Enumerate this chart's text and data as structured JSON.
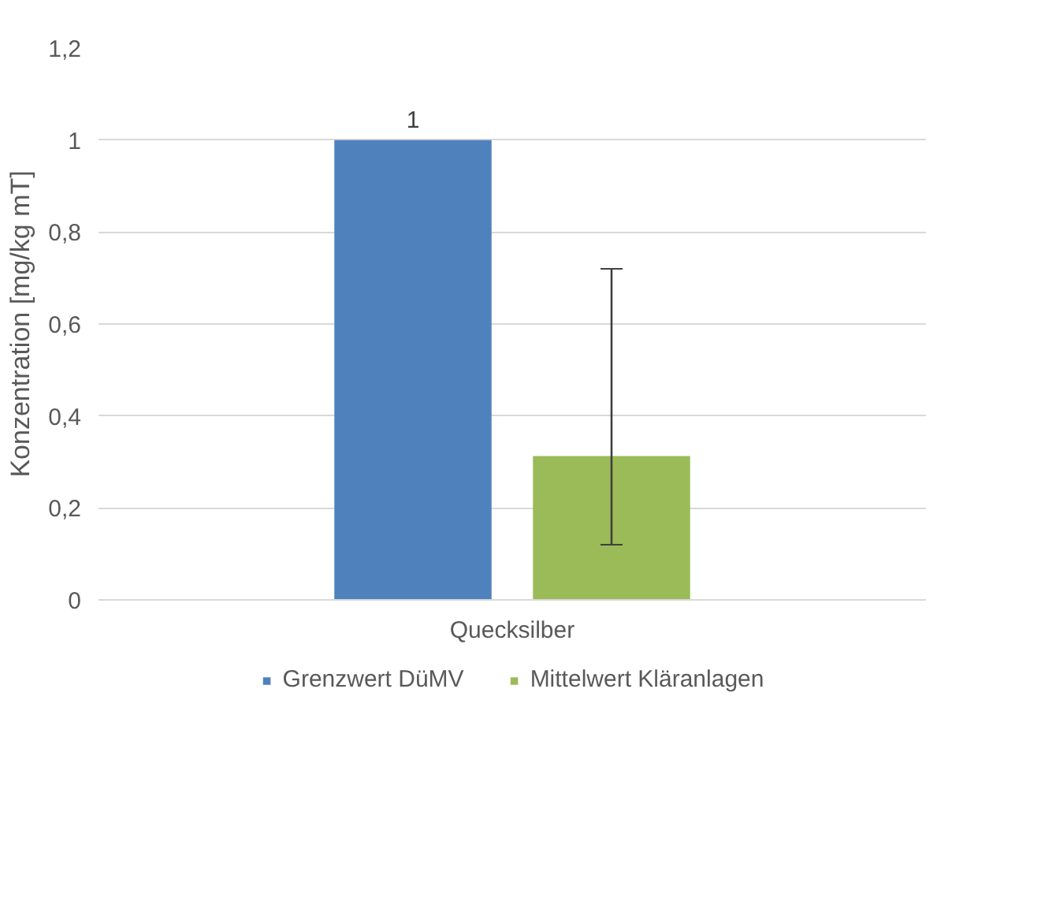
{
  "chart_data": {
    "type": "bar",
    "ylabel": "Konzentration [mg/kg mT]",
    "categories": [
      "Quecksilber"
    ],
    "series": [
      {
        "name": "Grenzwert DüMV",
        "color": "#4f81bd",
        "values": [
          1
        ],
        "value_labels": [
          "1"
        ]
      },
      {
        "name": "Mittelwert Kläranlagen",
        "color": "#9bbb59",
        "values": [
          0.313
        ],
        "errors": [
          [
            0.12,
            0.72
          ]
        ]
      }
    ],
    "ylim": [
      0,
      1.2
    ],
    "yticks": [
      {
        "value": 0,
        "label": "0"
      },
      {
        "value": 0.2,
        "label": "0,2"
      },
      {
        "value": 0.4,
        "label": "0,4"
      },
      {
        "value": 0.6,
        "label": "0,6"
      },
      {
        "value": 0.8,
        "label": "0,8"
      },
      {
        "value": 1,
        "label": "1"
      },
      {
        "value": 1.2,
        "label": "1,2"
      }
    ],
    "grid": "y",
    "legend": "bottom"
  }
}
